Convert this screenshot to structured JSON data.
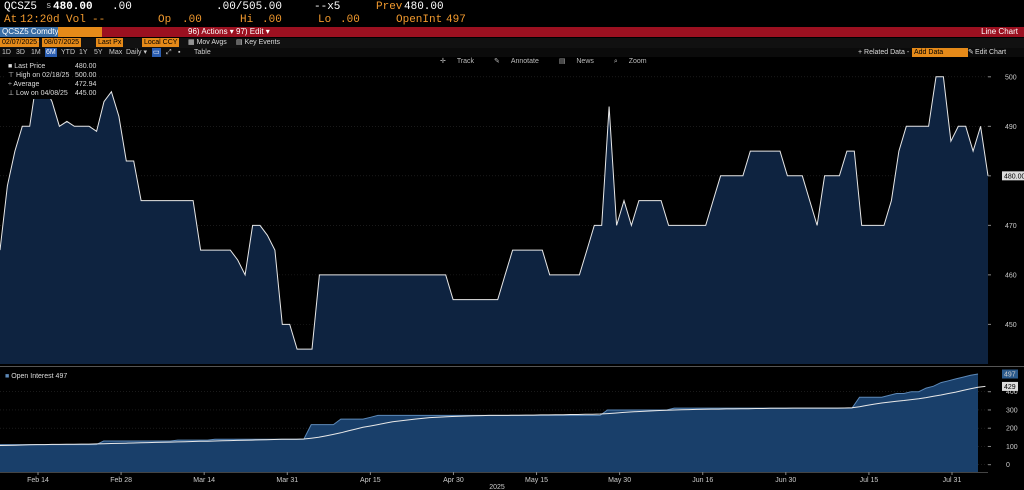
{
  "quote": {
    "ticker": "QCSZ5",
    "last_prefix": "s",
    "last": "480.00",
    "change": ".00",
    "bid_ask": ".00/505.00",
    "size": "--x5",
    "prev_label": "Prev",
    "prev": "480.00",
    "at_label": "At",
    "time": "12:20d",
    "vol_label": "Vol",
    "vol": "--",
    "op_label": "Op",
    "op": ".00",
    "hi_label": "Hi",
    "hi": ".00",
    "lo_label": "Lo",
    "lo": ".00",
    "oi_label": "OpenInt",
    "oi": "497"
  },
  "toolbar": {
    "security": "QCSZ5 Comdty",
    "actions": "96) Actions ▾",
    "edit": "97) Edit ▾",
    "view_title": "Line Chart",
    "start_date": "02/07/2025",
    "end_date": "08/07/2025",
    "field": "Last Px",
    "currency": "Local CCY",
    "mov_avg": "Mov Avgs",
    "key_events": "Key Events",
    "periods": [
      "1D",
      "3D",
      "1M",
      "6M",
      "YTD",
      "1Y",
      "5Y",
      "Max"
    ],
    "selected_period": "6M",
    "frequency": "Daily ▾",
    "table": "Table",
    "related_data": "+ Related Data -",
    "add_data": "Add Data",
    "edit_chart": "Edit Chart",
    "tools": [
      "Track",
      "Annotate",
      "News",
      "Zoom"
    ]
  },
  "legend": {
    "last_price_label": "Last Price",
    "last_price": "480.00",
    "high_label": "High on 02/18/25",
    "high": "500.00",
    "average_label": "Average",
    "average": "472.94",
    "low_label": "Low on 04/08/25",
    "low": "445.00",
    "oi_label": "Open Interest 497"
  },
  "chart_data": [
    {
      "type": "area",
      "title": "Last Price",
      "ylim": [
        442,
        504
      ],
      "y_ticks": [
        450,
        460,
        470,
        480,
        490,
        500
      ],
      "last_label": "480.00",
      "x_ticks": [
        "Feb 14",
        "Feb 28",
        "Mar 14",
        "Mar 31",
        "Apr 15",
        "Apr 30",
        "May 15",
        "May 30",
        "Jun 16",
        "Jun 30",
        "Jul 15",
        "Jul 31"
      ],
      "year_label": "2025",
      "colors": {
        "fill": "#0e2340",
        "line": "#e8e8e8"
      },
      "series": [
        {
          "name": "Last Price",
          "values": [
            465,
            478,
            485,
            490,
            490,
            500,
            498,
            495,
            490,
            491,
            490,
            490,
            490,
            489,
            495,
            497,
            492,
            483,
            483,
            475,
            475,
            475,
            475,
            475,
            475,
            475,
            475,
            465,
            465,
            465,
            465,
            465,
            463,
            460,
            470,
            470,
            468,
            465,
            450,
            450,
            445,
            445,
            445,
            460,
            460,
            460,
            460,
            460,
            460,
            460,
            460,
            460,
            460,
            460,
            460,
            460,
            460,
            460,
            460,
            460,
            460,
            455,
            455,
            455,
            455,
            455,
            455,
            455,
            460,
            465,
            465,
            465,
            465,
            465,
            460,
            460,
            460,
            460,
            460,
            465,
            470,
            470,
            494,
            470,
            475,
            470,
            475,
            475,
            475,
            475,
            470,
            470,
            470,
            470,
            470,
            470,
            475,
            480,
            480,
            480,
            480,
            485,
            485,
            485,
            485,
            485,
            480,
            480,
            480,
            475,
            470,
            480,
            480,
            480,
            485,
            485,
            470,
            470,
            470,
            470,
            475,
            485,
            490,
            490,
            490,
            490,
            500,
            500,
            487,
            490,
            490,
            485,
            490,
            480
          ]
        }
      ]
    },
    {
      "type": "area",
      "title": "Open Interest",
      "ylim": [
        -40,
        530
      ],
      "y_ticks": [
        0,
        100,
        200,
        300,
        400
      ],
      "last_labels": [
        "497",
        "429"
      ],
      "colors": {
        "fill": "#193f6a",
        "line": "#5d89b8",
        "ma": "#e8e8e8"
      },
      "series": [
        {
          "name": "Open Interest",
          "values": [
            110,
            110,
            110,
            110,
            110,
            110,
            110,
            110,
            110,
            110,
            110,
            110,
            110,
            110,
            130,
            130,
            130,
            130,
            130,
            130,
            130,
            130,
            130,
            130,
            135,
            135,
            135,
            135,
            135,
            140,
            140,
            140,
            140,
            140,
            140,
            140,
            140,
            140,
            140,
            140,
            140,
            140,
            220,
            220,
            220,
            220,
            250,
            250,
            250,
            250,
            260,
            270,
            270,
            270,
            270,
            270,
            270,
            270,
            270,
            270,
            270,
            270,
            270,
            270,
            270,
            270,
            270,
            270,
            270,
            270,
            270,
            270,
            270,
            270,
            270,
            270,
            270,
            270,
            270,
            270,
            270,
            270,
            300,
            300,
            300,
            300,
            300,
            300,
            300,
            300,
            300,
            310,
            310,
            310,
            310,
            310,
            310,
            310,
            310,
            310,
            310,
            310,
            310,
            310,
            310,
            310,
            310,
            310,
            310,
            310,
            310,
            310,
            310,
            310,
            310,
            310,
            370,
            370,
            370,
            370,
            380,
            390,
            390,
            400,
            400,
            420,
            430,
            450,
            460,
            470,
            480,
            490,
            497
          ]
        },
        {
          "name": "MA",
          "values": [
            105,
            106,
            107,
            108,
            109,
            110,
            110,
            111,
            111,
            112,
            112,
            113,
            113,
            114,
            115,
            116,
            117,
            118,
            119,
            120,
            121,
            122,
            123,
            124,
            125,
            126,
            127,
            128,
            129,
            130,
            131,
            132,
            133,
            134,
            135,
            136,
            137,
            138,
            139,
            140,
            140,
            141,
            145,
            150,
            158,
            166,
            175,
            185,
            195,
            205,
            212,
            220,
            228,
            235,
            240,
            245,
            250,
            254,
            258,
            260,
            262,
            264,
            266,
            267,
            268,
            269,
            270,
            270,
            270,
            271,
            271,
            272,
            272,
            273,
            273,
            274,
            274,
            275,
            275,
            276,
            277,
            278,
            280,
            283,
            286,
            289,
            291,
            293,
            295,
            297,
            298,
            300,
            301,
            302,
            303,
            304,
            305,
            305,
            306,
            306,
            307,
            307,
            308,
            308,
            309,
            309,
            309,
            310,
            310,
            310,
            310,
            310,
            310,
            310,
            311,
            312,
            318,
            325,
            332,
            338,
            343,
            348,
            352,
            357,
            362,
            368,
            375,
            382,
            390,
            398,
            407,
            416,
            424,
            429
          ]
        }
      ]
    }
  ]
}
